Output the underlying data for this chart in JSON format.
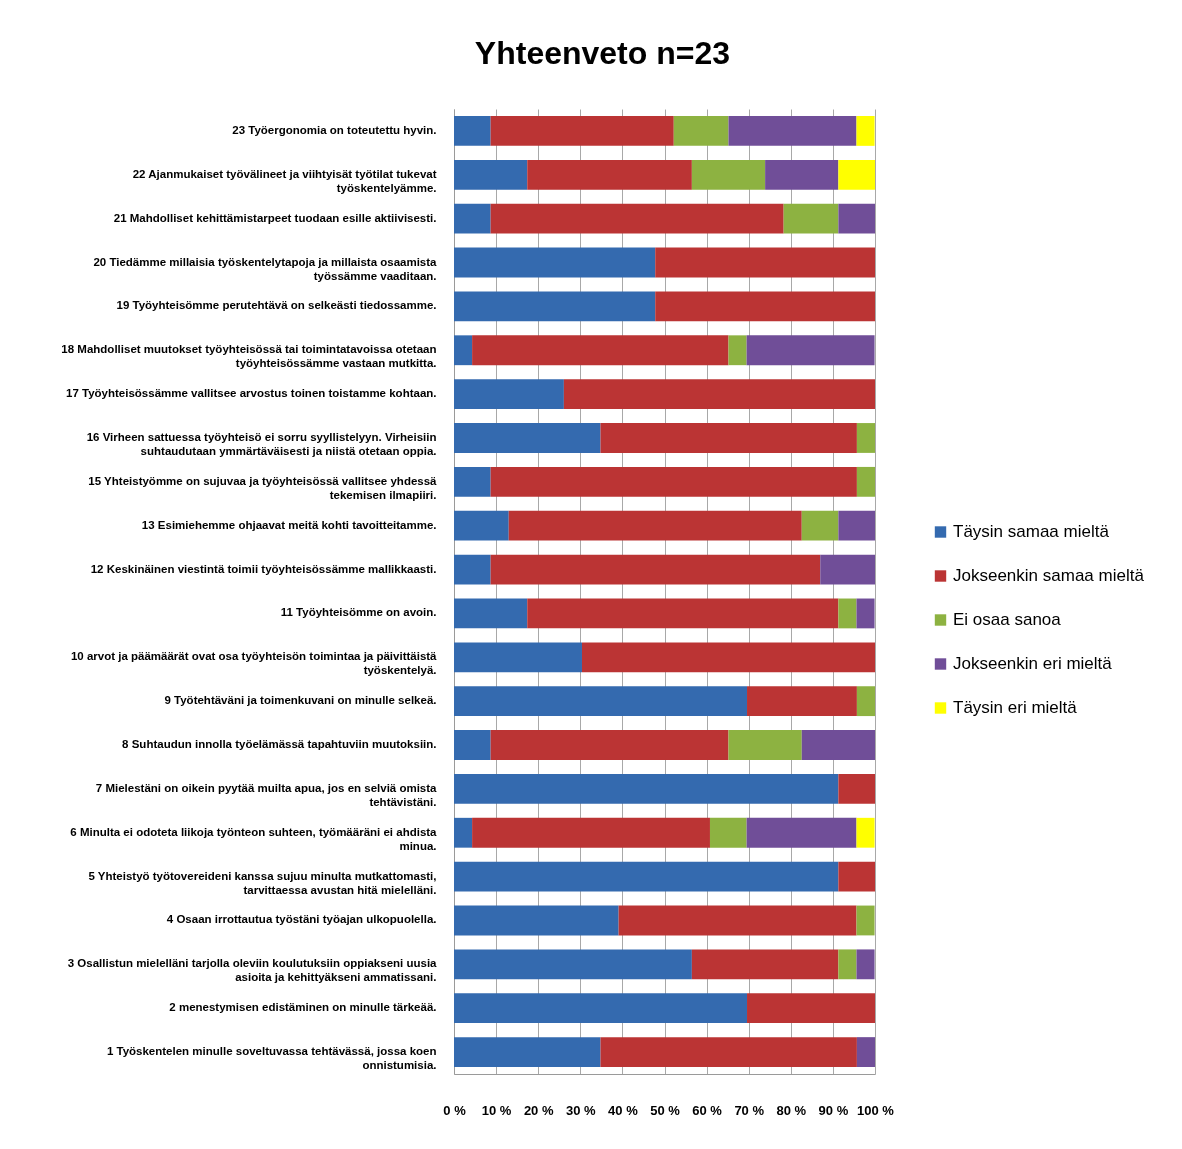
{
  "chart_data": {
    "type": "bar",
    "title": "Yhteenveto n=23",
    "orientation": "horizontal",
    "stacked": true,
    "categories": [
      "23 Työergonomia on toteutettu hyvin.",
      "22 Ajanmukaiset työvälineet ja viihtyisät työtilat tukevat työskentelyämme.",
      "21 Mahdolliset kehittämistarpeet tuodaan esille aktiivisesti.",
      "20 Tiedämme millaisia työskentelytapoja ja millaista osaamista työssämme vaaditaan.",
      "19 Työyhteisömme perutehtävä on selkeästi tiedossamme.",
      "18 Mahdolliset muutokset työyhteisössä tai toimintatavoissa otetaan työyhteisössämme vastaan mutkitta.",
      "17 Työyhteisössämme vallitsee arvostus toinen toistamme kohtaan.",
      "16 Virheen sattuessa työyhteisö ei sorru syyllistelyyn. Virheisiin suhtaudutaan ymmärtäväisesti ja niistä otetaan oppia.",
      "15 Yhteistyömme on sujuvaa ja työyhteisössä vallitsee yhdessä tekemisen ilmapiiri.",
      "13 Esimiehemme ohjaavat meitä kohti tavoitteitamme.",
      "12 Keskinäinen viestintä toimii työyhteisössämme mallikkaasti.",
      "11 Työyhteisömme on avoin.",
      "10 arvot ja päämäärät ovat osa työyhteisön toimintaa ja päivittäistä työskentelyä.",
      "9 Työtehtäväni ja toimenkuvani on minulle selkeä.",
      "8 Suhtaudun innolla työelämässä tapahtuviin muutoksiin.",
      "7 Mielestäni on oikein pyytää muilta apua, jos en selviä omista tehtävistäni.",
      "6 Minulta ei odoteta liikoja työnteon suhteen, työmääräni ei ahdista minua.",
      "5 Yhteistyö työtovereideni kanssa sujuu minulta mutkattomasti, tarvittaessa avustan hitä mielelläni.",
      "4 Osaan irrottautua työstäni työajan ulkopuolella.",
      "3 Osallistun mielelläni tarjolla oleviin koulutuksiin oppiakseni uusia asioita ja kehittyäkseni ammatissani.",
      "2 menestymisen edistäminen on minulle tärkeää.",
      "1 Työskentelen minulle soveltuvassa tehtävässä, jossa koen onnistumisia."
    ],
    "series": [
      {
        "name": "Täysin samaa mieltä",
        "color": "#346aaf",
        "values": [
          8.7,
          17.4,
          8.7,
          47.8,
          47.8,
          4.3,
          26.1,
          34.8,
          8.7,
          13.0,
          8.7,
          17.4,
          30.4,
          69.6,
          8.7,
          91.3,
          4.3,
          91.3,
          39.1,
          56.5,
          69.6,
          34.8
        ]
      },
      {
        "name": "Jokseenkin samaa mieltä",
        "color": "#bb3434",
        "values": [
          43.5,
          39.1,
          69.6,
          52.2,
          52.2,
          60.9,
          73.9,
          60.9,
          87.0,
          69.6,
          78.3,
          73.9,
          69.6,
          26.1,
          56.5,
          8.7,
          56.5,
          8.7,
          56.5,
          34.8,
          30.4,
          60.9
        ]
      },
      {
        "name": "Ei osaa sanoa",
        "color": "#8db241",
        "values": [
          13.0,
          17.4,
          13.0,
          null,
          null,
          4.3,
          null,
          4.3,
          4.3,
          8.7,
          null,
          4.3,
          null,
          4.3,
          17.4,
          null,
          8.7,
          null,
          4.3,
          4.3,
          null,
          null
        ]
      },
      {
        "name": "Jokseenkin eri mieltä",
        "color": "#704e98",
        "values": [
          30.4,
          17.4,
          8.7,
          null,
          null,
          30.4,
          null,
          null,
          null,
          8.7,
          13.0,
          4.3,
          null,
          null,
          17.4,
          null,
          26.1,
          null,
          null,
          4.3,
          null,
          4.3
        ]
      },
      {
        "name": "Täysin eri mieltä",
        "color": "#ffff00",
        "values": [
          4.3,
          8.7,
          null,
          null,
          null,
          null,
          null,
          null,
          null,
          null,
          null,
          null,
          null,
          null,
          null,
          null,
          4.3,
          null,
          null,
          null,
          null,
          null
        ]
      }
    ],
    "xlim": [
      0,
      100
    ],
    "xticks": [
      {
        "value": 0,
        "label": "0 %"
      },
      {
        "value": 10,
        "label": "10 %"
      },
      {
        "value": 20,
        "label": "20 %"
      },
      {
        "value": 30,
        "label": "30 %"
      },
      {
        "value": 40,
        "label": "40 %"
      },
      {
        "value": 50,
        "label": "50 %"
      },
      {
        "value": 60,
        "label": "60 %"
      },
      {
        "value": 70,
        "label": "70 %"
      },
      {
        "value": 80,
        "label": "80 %"
      },
      {
        "value": 90,
        "label": "90 %"
      },
      {
        "value": 100,
        "label": "100 %"
      }
    ],
    "grid": "x",
    "legend": "right"
  }
}
